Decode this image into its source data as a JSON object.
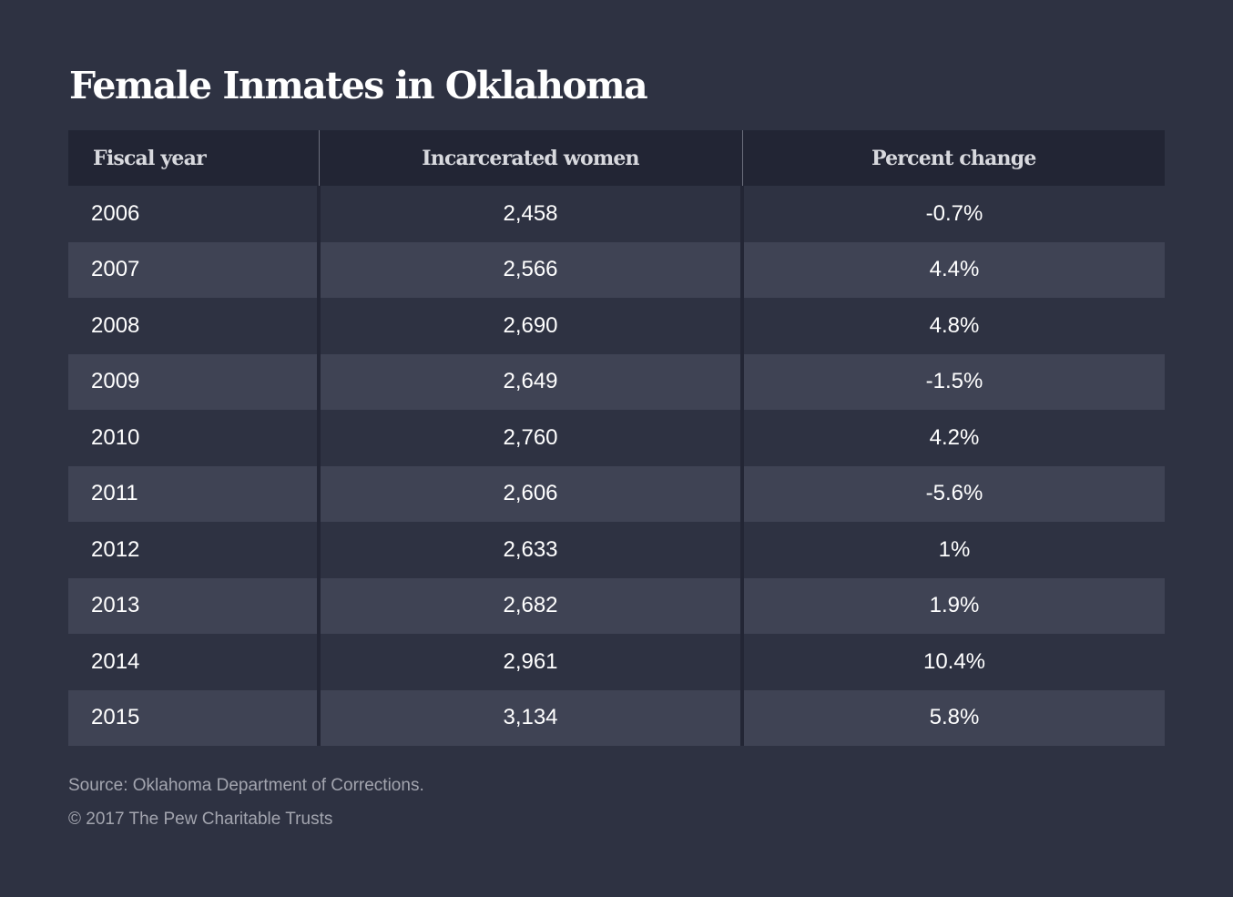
{
  "title": "Female Inmates in Oklahoma",
  "columns": [
    "Fiscal year",
    "Incarcerated women",
    "Percent change"
  ],
  "rows": [
    {
      "year": "2006",
      "women": "2,458",
      "change": "-0.7%"
    },
    {
      "year": "2007",
      "women": "2,566",
      "change": "4.4%"
    },
    {
      "year": "2008",
      "women": "2,690",
      "change": "4.8%"
    },
    {
      "year": "2009",
      "women": "2,649",
      "change": "-1.5%"
    },
    {
      "year": "2010",
      "women": "2,760",
      "change": "4.2%"
    },
    {
      "year": "2011",
      "women": "2,606",
      "change": "-5.6%"
    },
    {
      "year": "2012",
      "women": "2,633",
      "change": "1%"
    },
    {
      "year": "2013",
      "women": "2,682",
      "change": "1.9%"
    },
    {
      "year": "2014",
      "women": "2,961",
      "change": "10.4%"
    },
    {
      "year": "2015",
      "women": "3,134",
      "change": "5.8%"
    }
  ],
  "source": "Source: Oklahoma Department of Corrections.",
  "copyright": "© 2017 The Pew Charitable Trusts",
  "colors": {
    "background": "#2e3242",
    "header_background": "#222534",
    "row_alt_background": "#3f4354",
    "text": "#ffffff",
    "footer_text": "#a3a5af"
  },
  "chart_data": {
    "type": "table",
    "title": "Female Inmates in Oklahoma",
    "columns": [
      "Fiscal year",
      "Incarcerated women",
      "Percent change"
    ],
    "rows": [
      [
        "2006",
        2458,
        "-0.7%"
      ],
      [
        "2007",
        2566,
        "4.4%"
      ],
      [
        "2008",
        2690,
        "4.8%"
      ],
      [
        "2009",
        2649,
        "-1.5%"
      ],
      [
        "2010",
        2760,
        "4.2%"
      ],
      [
        "2011",
        2606,
        "-5.6%"
      ],
      [
        "2012",
        2633,
        "1%"
      ],
      [
        "2013",
        2682,
        "1.9%"
      ],
      [
        "2014",
        2961,
        "10.4%"
      ],
      [
        "2015",
        3134,
        "5.8%"
      ]
    ],
    "source": "Source: Oklahoma Department of Corrections."
  }
}
